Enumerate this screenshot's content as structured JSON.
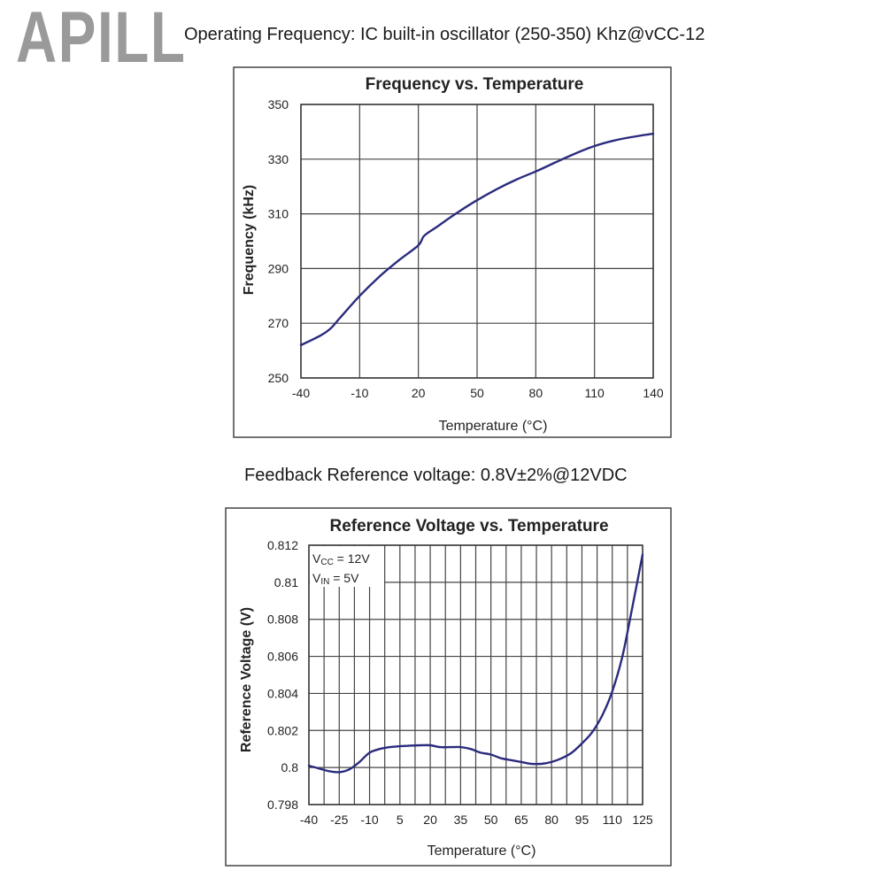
{
  "watermark": "APILL",
  "captions": {
    "top": "Operating Frequency: IC built-in oscillator (250-350) Khz@vCC-12",
    "middle": "Feedback Reference voltage: 0.8V±2%@12VDC"
  },
  "colors": {
    "series": "#2b2b7e",
    "grid": "#444444"
  },
  "chart_data": [
    {
      "type": "line",
      "title": "Frequency vs. Temperature",
      "xlabel": "Temperature (°C)",
      "ylabel": "Frequency (kHz)",
      "xlim": [
        -40,
        140
      ],
      "ylim": [
        250,
        350
      ],
      "xticks": [
        -40,
        -10,
        20,
        50,
        80,
        110,
        140
      ],
      "xtick_labels": [
        "-40",
        "-10",
        "20",
        "50",
        "80",
        "110",
        "140"
      ],
      "yticks": [
        250,
        270,
        290,
        310,
        330,
        350
      ],
      "ytick_labels": [
        "250",
        "270",
        "290",
        "310",
        "330",
        "350"
      ],
      "grid": true,
      "series": [
        {
          "name": "Frequency",
          "x": [
            -40,
            -30,
            -25,
            -20,
            -10,
            0,
            10,
            20,
            23,
            30,
            40,
            50,
            60,
            70,
            80,
            90,
            100,
            110,
            120,
            130,
            140
          ],
          "y": [
            262,
            265.5,
            268,
            272,
            280,
            287,
            293,
            298.5,
            302,
            305.5,
            310.5,
            315,
            319,
            322.5,
            325.5,
            328.8,
            332,
            334.8,
            336.8,
            338.2,
            339.3
          ]
        }
      ],
      "annotations": []
    },
    {
      "type": "line",
      "title": "Reference Voltage vs. Temperature",
      "xlabel": "Temperature (°C)",
      "ylabel": "Reference Voltage (V)",
      "xlim": [
        -40,
        125
      ],
      "ylim": [
        0.798,
        0.812
      ],
      "xticks": [
        -40,
        -25,
        -10,
        5,
        20,
        35,
        50,
        65,
        80,
        95,
        110,
        125
      ],
      "xtick_labels": [
        "-40",
        "-25",
        "-10",
        "5",
        "20",
        "35",
        "50",
        "65",
        "80",
        "95",
        "110",
        "125"
      ],
      "yticks": [
        0.798,
        0.8,
        0.802,
        0.804,
        0.806,
        0.808,
        0.81,
        0.812
      ],
      "ytick_labels": [
        "0.798",
        "0.8",
        "0.802",
        "0.804",
        "0.806",
        "0.808",
        "0.81",
        "0.812"
      ],
      "xgrid_step": 7.5,
      "grid": true,
      "series": [
        {
          "name": "Reference Voltage",
          "x": [
            -40,
            -35,
            -30,
            -25,
            -20,
            -15,
            -10,
            -5,
            0,
            5,
            10,
            15,
            20,
            25,
            30,
            35,
            40,
            45,
            50,
            55,
            60,
            65,
            70,
            75,
            80,
            85,
            90,
            95,
            100,
            105,
            110,
            115,
            120,
            125
          ],
          "y": [
            0.8001,
            0.79995,
            0.7998,
            0.79975,
            0.7999,
            0.8003,
            0.8008,
            0.801,
            0.8011,
            0.80115,
            0.80118,
            0.8012,
            0.8012,
            0.8011,
            0.8011,
            0.8011,
            0.801,
            0.8008,
            0.8007,
            0.8005,
            0.8004,
            0.8003,
            0.8002,
            0.8002,
            0.8003,
            0.8005,
            0.8008,
            0.8013,
            0.8019,
            0.8028,
            0.8041,
            0.806,
            0.8087,
            0.8115
          ]
        }
      ],
      "annotations": [
        {
          "label": "V",
          "sub": "CC",
          "rest": " = 12V"
        },
        {
          "label": "V",
          "sub": "IN",
          "rest": " = 5V"
        }
      ]
    }
  ]
}
